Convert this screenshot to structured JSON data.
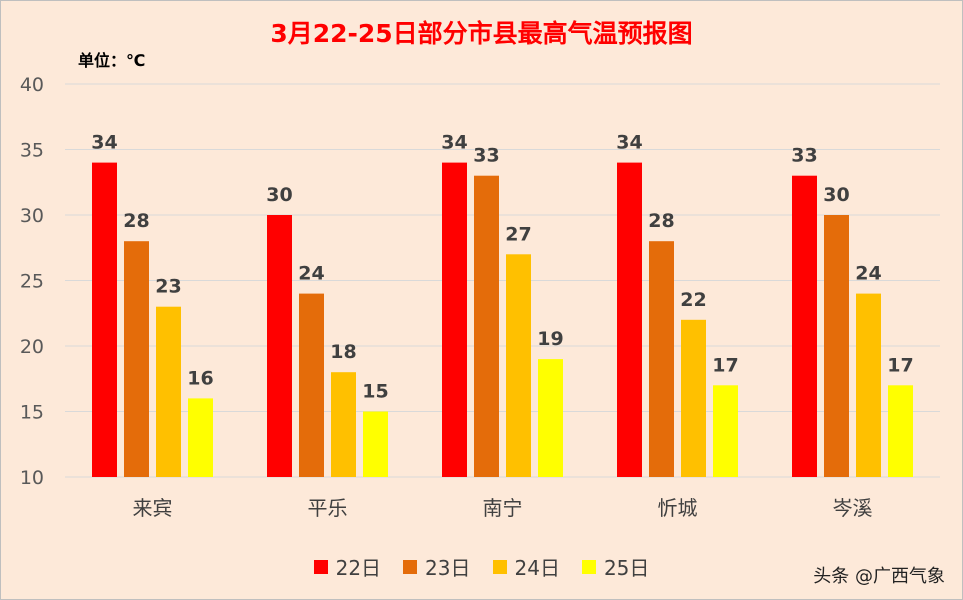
{
  "title": "3月22-25日部分市县最高气温预报图",
  "unit_label": "单位：℃",
  "watermark": "头条 @广西气象",
  "colors": {
    "background": "#fde9d9",
    "gridline": "#d9d9d9",
    "series": [
      "#ff0000",
      "#e46c0a",
      "#ffc000",
      "#ffff00"
    ]
  },
  "chart_data": {
    "type": "bar",
    "title": "3月22-25日部分市县最高气温预报图",
    "xlabel": "",
    "ylabel": "",
    "ylim": [
      10,
      40
    ],
    "yticks": [
      10,
      15,
      20,
      25,
      30,
      35,
      40
    ],
    "grid": true,
    "legend_position": "bottom",
    "categories": [
      "来宾",
      "平乐",
      "南宁",
      "忻城",
      "岑溪"
    ],
    "series": [
      {
        "name": "22日",
        "values": [
          34,
          30,
          34,
          34,
          33
        ]
      },
      {
        "name": "23日",
        "values": [
          28,
          24,
          33,
          28,
          30
        ]
      },
      {
        "name": "24日",
        "values": [
          23,
          18,
          27,
          22,
          24
        ]
      },
      {
        "name": "25日",
        "values": [
          16,
          15,
          19,
          17,
          17
        ]
      }
    ]
  }
}
